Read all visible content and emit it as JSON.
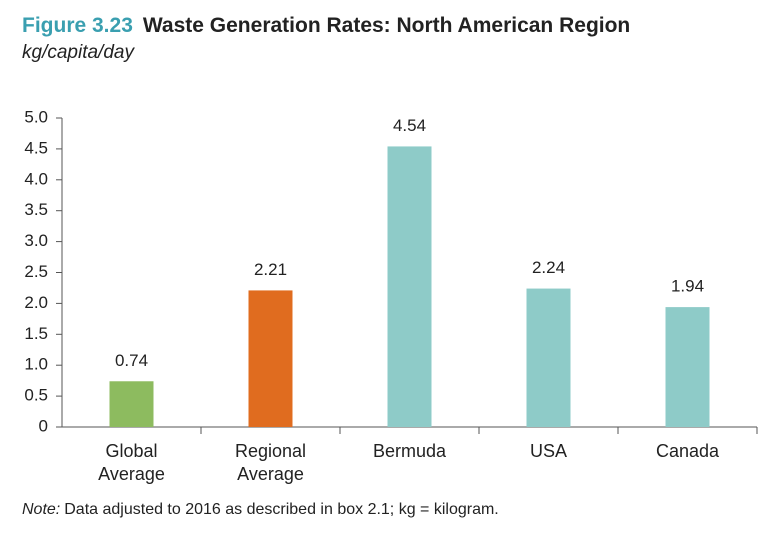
{
  "chart_data": {
    "type": "bar",
    "figure_label": "Figure 3.23",
    "title": "Waste Generation Rates: North American Region",
    "subtitle": "kg/capita/day",
    "categories": [
      "Global Average",
      "Regional Average",
      "Bermuda",
      "USA",
      "Canada"
    ],
    "values": [
      0.74,
      2.21,
      4.54,
      2.24,
      1.94
    ],
    "colors": [
      "#8dbb5f",
      "#e06c1f",
      "#8ecbc8",
      "#8ecbc8",
      "#8ecbc8"
    ],
    "ylim": [
      0,
      5
    ],
    "yticks": [
      0,
      0.5,
      {
        "value": 1,
        "label": "1.0"
      },
      1.5,
      {
        "value": 2,
        "label": "2.0"
      },
      2.5,
      {
        "value": 3,
        "label": "3.0"
      },
      3.5,
      {
        "value": 4,
        "label": "4.0"
      },
      4.5,
      {
        "value": 5,
        "label": "5.0"
      }
    ],
    "grid": false,
    "note_label": "Note:",
    "note": "Data adjusted to 2016 as described in box 2.1; kg = kilogram."
  }
}
